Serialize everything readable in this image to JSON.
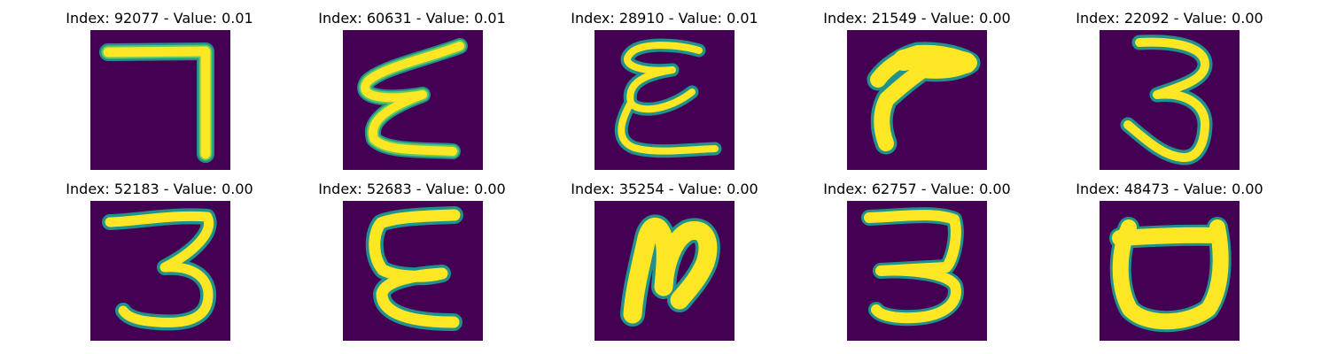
{
  "colors": {
    "background": "#440154",
    "edge": "#21918c",
    "edge_light": "#5ec962",
    "foreground": "#fde725"
  },
  "panels": [
    {
      "title": "Index: 92077 - Value: 0.01",
      "glyph": "seven-like stroke"
    },
    {
      "title": "Index: 60631 - Value: 0.01",
      "glyph": "epsilon-like stroke"
    },
    {
      "title": "Index: 28910 - Value: 0.01",
      "glyph": "epsilon-like stroke"
    },
    {
      "title": "Index: 21549 - Value: 0.00",
      "glyph": "hook stroke"
    },
    {
      "title": "Index: 22092 - Value: 0.00",
      "glyph": "three stroke"
    },
    {
      "title": "Index: 52183 - Value: 0.00",
      "glyph": "three stroke"
    },
    {
      "title": "Index: 52683 - Value: 0.00",
      "glyph": "epsilon-like stroke"
    },
    {
      "title": "Index: 35254 - Value: 0.00",
      "glyph": "n-like stroke"
    },
    {
      "title": "Index: 62757 - Value: 0.00",
      "glyph": "three stroke"
    },
    {
      "title": "Index: 48473 - Value: 0.00",
      "glyph": "cup-like stroke"
    }
  ]
}
